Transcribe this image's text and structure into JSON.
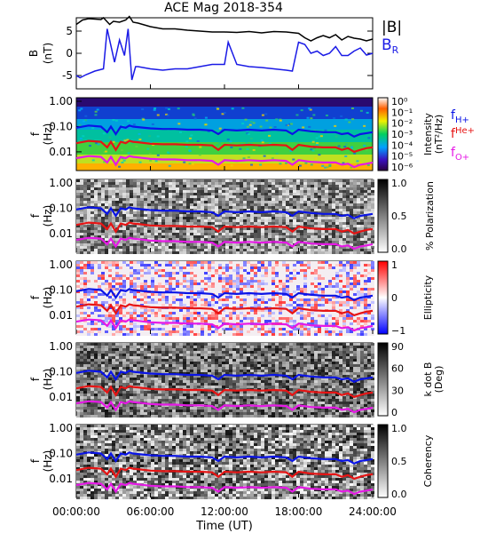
{
  "chart_data": {
    "type": "heatmap",
    "title": "ACE Mag 2018-354",
    "xlabel": "Time (UT)",
    "xticks": [
      "00:00:00",
      "06:00:00",
      "12:00:00",
      "18:00:00",
      "24:00:00"
    ],
    "xlim_hours": [
      0,
      24
    ],
    "panels": [
      {
        "id": "b-field",
        "type": "line",
        "ylabel": "B",
        "yunit": "(nT)",
        "ylim": [
          -8,
          8
        ],
        "yticks": [
          "5",
          "0",
          "-5"
        ],
        "legend_title": "|B|",
        "series": [
          {
            "name": "|B|",
            "color": "#000000",
            "x": [
              0,
              0.5,
              1,
              2,
              2.2,
              2.7,
              3,
              3.5,
              4,
              4.3,
              4.6,
              5,
              6,
              7,
              8,
              9,
              10,
              11,
              12,
              13,
              14,
              15,
              16,
              17,
              18,
              18.5,
              19,
              19.5,
              20,
              20.5,
              21,
              21.5,
              22,
              22.5,
              23,
              23.5,
              24
            ],
            "y": [
              6.5,
              7.5,
              7.8,
              7.6,
              8.0,
              6.5,
              7.2,
              7.0,
              7.5,
              8.3,
              7.0,
              6.8,
              6.0,
              5.5,
              5.5,
              5.2,
              5.0,
              4.8,
              4.8,
              4.7,
              4.9,
              4.6,
              4.9,
              4.8,
              4.5,
              3.5,
              2.8,
              3.5,
              4.0,
              3.5,
              4.2,
              3.0,
              3.8,
              3.4,
              3.2,
              2.8,
              3.2
            ]
          },
          {
            "name": "B_R",
            "color": "#1a1ae6",
            "x": [
              0,
              0.3,
              0.8,
              1.5,
              2.2,
              2.5,
              3.1,
              3.5,
              3.9,
              4.2,
              4.5,
              4.8,
              5,
              6,
              7,
              8,
              9,
              10,
              11,
              12,
              12.3,
              13,
              14,
              15,
              16,
              17,
              17.5,
              18,
              18.5,
              19,
              19.5,
              20,
              20.5,
              21,
              21.5,
              22,
              22.5,
              23,
              23.5,
              24
            ],
            "y": [
              -5,
              -5.5,
              -4.8,
              -4,
              -3.5,
              5.5,
              -2,
              3,
              -0.5,
              5.5,
              -6,
              -3,
              -3,
              -3.5,
              -3.8,
              -3.5,
              -3.5,
              -3.0,
              -2.5,
              -2.5,
              2.5,
              -2.5,
              -3.0,
              -3.2,
              -3.5,
              -3.8,
              -4,
              2.5,
              2.0,
              0,
              0.5,
              -0.5,
              0,
              1.5,
              -0.5,
              -0.5,
              0.5,
              1.2,
              -0.4,
              0.0
            ]
          }
        ]
      },
      {
        "id": "intensity",
        "type": "heatmap",
        "ylabel": "f",
        "yunit": "(Hz)",
        "yscale": "log",
        "yticks": [
          "1.00",
          "0.10",
          "0.01"
        ],
        "colorbar_label": "Intensity",
        "colorbar_unit": "(nT²/Hz)",
        "colorbar_ticks": [
          "10⁰",
          "10⁻¹",
          "10⁻²",
          "10⁻³",
          "10⁻⁴",
          "10⁻⁵",
          "10⁻⁶"
        ],
        "colormap": "rainbow",
        "legend": [
          "H+",
          "He+",
          "O+"
        ]
      },
      {
        "id": "polarization",
        "type": "heatmap",
        "ylabel": "f",
        "yunit": "(Hz)",
        "yscale": "log",
        "yticks": [
          "1.00",
          "0.10",
          "0.01"
        ],
        "colorbar_label": "% Polarization",
        "colorbar_ticks": [
          "1.0",
          "0.5",
          "0.0"
        ],
        "colormap": "grey"
      },
      {
        "id": "ellipticity",
        "type": "heatmap",
        "ylabel": "f",
        "yunit": "(Hz)",
        "yscale": "log",
        "yticks": [
          "1.00",
          "0.10",
          "0.01"
        ],
        "colorbar_label": "Ellipticity",
        "colorbar_ticks": [
          "1",
          "0",
          "−1"
        ],
        "colormap": "bwr"
      },
      {
        "id": "kdotb",
        "type": "heatmap",
        "ylabel": "f",
        "yunit": "(Hz)",
        "yscale": "log",
        "yticks": [
          "1.00",
          "0.10",
          "0.01"
        ],
        "colorbar_label": "k dot B",
        "colorbar_unit": "(Deg)",
        "colorbar_ticks": [
          "90",
          "60",
          "30",
          "0"
        ],
        "colormap": "grey"
      },
      {
        "id": "coherency",
        "type": "heatmap",
        "ylabel": "f",
        "yunit": "(Hz)",
        "yscale": "log",
        "yticks": [
          "1.00",
          "0.10",
          "0.01"
        ],
        "colorbar_label": "Coherency",
        "colorbar_ticks": [
          "1.0",
          "0.5",
          "0.0"
        ],
        "colormap": "grey"
      }
    ],
    "gyrofrequency_lines": [
      {
        "name": "H+",
        "color": "#0a14e6",
        "x": [
          0,
          1,
          2,
          2.5,
          2.8,
          3.2,
          3.6,
          4,
          4.3,
          4.6,
          5,
          6,
          7,
          8,
          9,
          10,
          11,
          11.5,
          12,
          13,
          14,
          15,
          16,
          17,
          17.5,
          18,
          19,
          20,
          21,
          21.5,
          22,
          22.5,
          23,
          23.5,
          24
        ],
        "y": [
          0.09,
          0.11,
          0.1,
          0.06,
          0.1,
          0.05,
          0.1,
          0.09,
          0.11,
          0.1,
          0.095,
          0.085,
          0.08,
          0.08,
          0.075,
          0.075,
          0.07,
          0.05,
          0.075,
          0.07,
          0.075,
          0.07,
          0.075,
          0.07,
          0.05,
          0.075,
          0.065,
          0.06,
          0.06,
          0.05,
          0.055,
          0.04,
          0.05,
          0.055,
          0.06
        ]
      },
      {
        "name": "He+",
        "color": "#e61414",
        "x": [
          0,
          1,
          2,
          2.5,
          2.8,
          3.2,
          3.6,
          4,
          4.3,
          4.6,
          5,
          6,
          7,
          8,
          9,
          10,
          11,
          11.5,
          12,
          13,
          14,
          15,
          16,
          17,
          17.5,
          18,
          19,
          20,
          21,
          21.5,
          22,
          22.5,
          23,
          23.5,
          24
        ],
        "y": [
          0.022,
          0.027,
          0.025,
          0.015,
          0.025,
          0.012,
          0.025,
          0.022,
          0.027,
          0.025,
          0.024,
          0.021,
          0.02,
          0.02,
          0.019,
          0.019,
          0.018,
          0.012,
          0.019,
          0.018,
          0.019,
          0.018,
          0.019,
          0.018,
          0.012,
          0.019,
          0.016,
          0.015,
          0.015,
          0.012,
          0.014,
          0.01,
          0.012,
          0.014,
          0.015
        ]
      },
      {
        "name": "O+",
        "color": "#e619e6",
        "x": [
          0,
          1,
          2,
          2.5,
          2.8,
          3.2,
          3.6,
          4,
          4.3,
          4.6,
          5,
          6,
          7,
          8,
          9,
          10,
          11,
          11.5,
          12,
          13,
          14,
          15,
          16,
          17,
          17.5,
          18,
          19,
          20,
          21,
          21.5,
          22,
          22.5,
          23,
          23.5,
          24
        ],
        "y": [
          0.0056,
          0.0068,
          0.0063,
          0.0038,
          0.0063,
          0.0031,
          0.0063,
          0.0056,
          0.0068,
          0.0063,
          0.006,
          0.0053,
          0.005,
          0.005,
          0.0047,
          0.0047,
          0.0044,
          0.0031,
          0.0047,
          0.0044,
          0.0047,
          0.0044,
          0.0047,
          0.0044,
          0.0031,
          0.0047,
          0.004,
          0.0038,
          0.0038,
          0.0031,
          0.0034,
          0.0025,
          0.0031,
          0.0034,
          0.0038
        ]
      }
    ]
  }
}
